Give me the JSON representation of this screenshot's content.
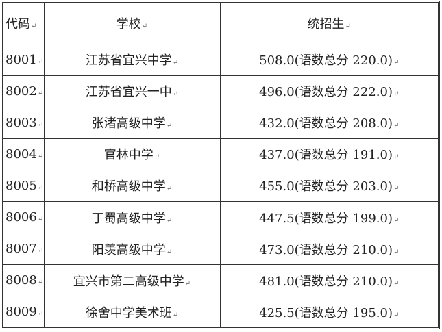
{
  "header": {
    "code": "代码",
    "school": "学校",
    "score": "统招生"
  },
  "paragraph_mark": "↵",
  "rows": [
    {
      "code": "8001",
      "school": "江苏省宜兴中学",
      "score": "508.0(语数总分 220.0)"
    },
    {
      "code": "8002",
      "school": "江苏省宜兴一中",
      "score": "496.0(语数总分 222.0)"
    },
    {
      "code": "8003",
      "school": "张渚高级中学",
      "score": "432.0(语数总分 208.0)"
    },
    {
      "code": "8004",
      "school": "官林中学",
      "score": "437.0(语数总分 191.0)"
    },
    {
      "code": "8005",
      "school": "和桥高级中学",
      "score": "455.0(语数总分 203.0)"
    },
    {
      "code": "8006",
      "school": "丁蜀高级中学",
      "score": "447.5(语数总分 199.0)"
    },
    {
      "code": "8007",
      "school": "阳羡高级中学",
      "score": "473.0(语数总分 210.0)"
    },
    {
      "code": "8008",
      "school": "宜兴市第二高级中学",
      "score": "481.0(语数总分 210.0)"
    },
    {
      "code": "8009",
      "school": "徐舍中学美术班",
      "score": "425.5(语数总分 195.0)"
    }
  ]
}
